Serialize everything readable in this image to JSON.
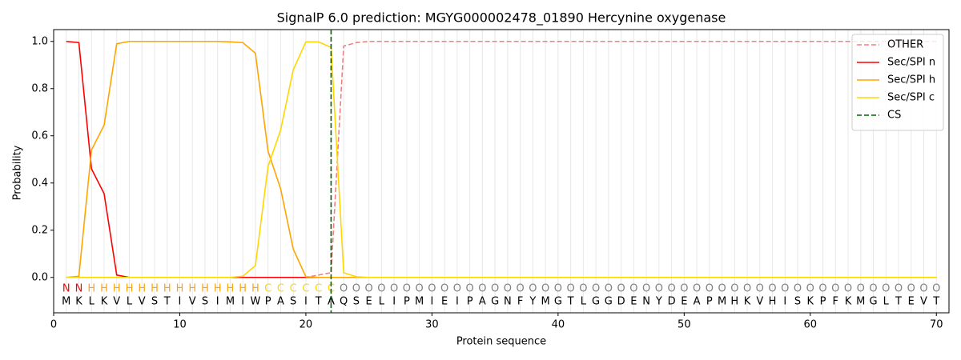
{
  "chart_data": {
    "type": "line",
    "title": "SignalP 6.0 prediction: MGYG000002478_01890 Hercynine oxygenase",
    "xlabel": "Protein sequence",
    "ylabel": "Probability",
    "x": [
      1,
      2,
      3,
      4,
      5,
      6,
      7,
      8,
      9,
      10,
      11,
      12,
      13,
      14,
      15,
      16,
      17,
      18,
      19,
      20,
      21,
      22,
      23,
      24,
      25,
      26,
      27,
      28,
      29,
      30,
      31,
      32,
      33,
      34,
      35,
      36,
      37,
      38,
      39,
      40,
      41,
      42,
      43,
      44,
      45,
      46,
      47,
      48,
      49,
      50,
      51,
      52,
      53,
      54,
      55,
      56,
      57,
      58,
      59,
      60,
      61,
      62,
      63,
      64,
      65,
      66,
      67,
      68,
      69,
      70
    ],
    "sequence": [
      "M",
      "K",
      "L",
      "K",
      "V",
      "L",
      "V",
      "S",
      "T",
      "I",
      "V",
      "S",
      "I",
      "M",
      "I",
      "W",
      "P",
      "A",
      "S",
      "I",
      "T",
      "A",
      "Q",
      "S",
      "E",
      "L",
      "I",
      "P",
      "M",
      "I",
      "E",
      "I",
      "P",
      "A",
      "G",
      "N",
      "F",
      "Y",
      "M",
      "G",
      "T",
      "L",
      "G",
      "G",
      "D",
      "E",
      "N",
      "Y",
      "D",
      "E",
      "A",
      "P",
      "M",
      "H",
      "K",
      "V",
      "H",
      "I",
      "S",
      "K",
      "P",
      "F",
      "K",
      "M",
      "G",
      "L",
      "T",
      "E",
      "V",
      "T"
    ],
    "regions": [
      "N",
      "N",
      "H",
      "H",
      "H",
      "H",
      "H",
      "H",
      "H",
      "H",
      "H",
      "H",
      "H",
      "H",
      "H",
      "H",
      "C",
      "C",
      "C",
      "C",
      "C",
      "C",
      "O",
      "O",
      "O",
      "O",
      "O",
      "O",
      "O",
      "O",
      "O",
      "O",
      "O",
      "O",
      "O",
      "O",
      "O",
      "O",
      "O",
      "O",
      "O",
      "O",
      "O",
      "O",
      "O",
      "O",
      "O",
      "O",
      "O",
      "O",
      "O",
      "O",
      "O",
      "O",
      "O",
      "O",
      "O",
      "O",
      "O",
      "O",
      "O",
      "O",
      "O",
      "O",
      "O",
      "O",
      "O",
      "O",
      "O",
      "O"
    ],
    "region_colors": {
      "N": "#ff0000",
      "H": "#ffa500",
      "C": "#ffd700",
      "O": "#808080"
    },
    "series": [
      {
        "name": "OTHER",
        "color": "#f08080",
        "dashed": true,
        "values": [
          0,
          0,
          0,
          0,
          0,
          0,
          0,
          0,
          0,
          0,
          0,
          0,
          0,
          0,
          0,
          0,
          0,
          0,
          0,
          0,
          0.01,
          0.02,
          0.98,
          0.995,
          1,
          1,
          1,
          1,
          1,
          1,
          1,
          1,
          1,
          1,
          1,
          1,
          1,
          1,
          1,
          1,
          1,
          1,
          1,
          1,
          1,
          1,
          1,
          1,
          1,
          1,
          1,
          1,
          1,
          1,
          1,
          1,
          1,
          1,
          1,
          1,
          1,
          1,
          1,
          1,
          1,
          1,
          1,
          1,
          1,
          1
        ]
      },
      {
        "name": "Sec/SPI n",
        "color": "#ff0000",
        "dashed": false,
        "values": [
          1,
          0.995,
          0.46,
          0.355,
          0.01,
          0,
          0,
          0,
          0,
          0,
          0,
          0,
          0,
          0,
          0,
          0,
          0,
          0,
          0,
          0,
          0,
          0,
          0,
          0,
          0,
          0,
          0,
          0,
          0,
          0,
          0,
          0,
          0,
          0,
          0,
          0,
          0,
          0,
          0,
          0,
          0,
          0,
          0,
          0,
          0,
          0,
          0,
          0,
          0,
          0,
          0,
          0,
          0,
          0,
          0,
          0,
          0,
          0,
          0,
          0,
          0,
          0,
          0,
          0,
          0,
          0,
          0,
          0,
          0,
          0
        ]
      },
      {
        "name": "Sec/SPI h",
        "color": "#ffa500",
        "dashed": false,
        "values": [
          0,
          0.005,
          0.54,
          0.645,
          0.99,
          1,
          1,
          1,
          1,
          1,
          1,
          1,
          1,
          0.998,
          0.995,
          0.95,
          0.535,
          0.375,
          0.12,
          0.003,
          0,
          0,
          0,
          0,
          0,
          0,
          0,
          0,
          0,
          0,
          0,
          0,
          0,
          0,
          0,
          0,
          0,
          0,
          0,
          0,
          0,
          0,
          0,
          0,
          0,
          0,
          0,
          0,
          0,
          0,
          0,
          0,
          0,
          0,
          0,
          0,
          0,
          0,
          0,
          0,
          0,
          0,
          0,
          0,
          0,
          0,
          0,
          0,
          0,
          0
        ]
      },
      {
        "name": "Sec/SPI c",
        "color": "#ffd700",
        "dashed": false,
        "values": [
          0,
          0,
          0,
          0,
          0,
          0,
          0,
          0,
          0,
          0,
          0,
          0,
          0,
          0,
          0.005,
          0.05,
          0.47,
          0.625,
          0.88,
          0.998,
          0.998,
          0.975,
          0.02,
          0.003,
          0,
          0,
          0,
          0,
          0,
          0,
          0,
          0,
          0,
          0,
          0,
          0,
          0,
          0,
          0,
          0,
          0,
          0,
          0,
          0,
          0,
          0,
          0,
          0,
          0,
          0,
          0,
          0,
          0,
          0,
          0,
          0,
          0,
          0,
          0,
          0,
          0,
          0,
          0,
          0,
          0,
          0,
          0,
          0,
          0,
          0
        ]
      }
    ],
    "cleavage_site": {
      "name": "CS",
      "color": "#006400",
      "x": 22
    },
    "xlim": [
      0,
      71
    ],
    "ylim": [
      -0.15,
      1.05
    ],
    "xticks": [
      0,
      10,
      20,
      30,
      40,
      50,
      60,
      70
    ],
    "yticks": [
      {
        "value": 0,
        "label": "0.0"
      },
      {
        "value": 0.2,
        "label": "0.2"
      },
      {
        "value": 0.4,
        "label": "0.4"
      },
      {
        "value": 0.6,
        "label": "0.6"
      },
      {
        "value": 0.8,
        "label": "0.8"
      },
      {
        "value": 1,
        "label": "1.0"
      }
    ],
    "legend": "upper right"
  }
}
